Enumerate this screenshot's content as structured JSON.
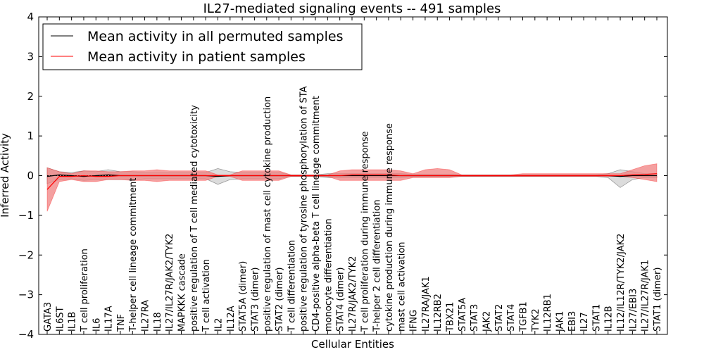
{
  "chart_data": {
    "type": "line",
    "title": "IL27-mediated signaling events -- 491 samples",
    "xlabel": "Cellular Entities",
    "ylabel": "Inferred Activity",
    "ylim": [
      -4,
      4
    ],
    "yticks": [
      "−4",
      "−3",
      "−2",
      "−1",
      "0",
      "1",
      "2",
      "3",
      "4"
    ],
    "legend": {
      "position": "top-left",
      "entries": [
        {
          "label": "Mean activity in all permuted samples",
          "color": "#000000"
        },
        {
          "label": "Mean activity in patient samples",
          "color": "#ff0000"
        }
      ]
    },
    "categories": [
      "GATA3",
      "IL6ST",
      "IL1B",
      "T cell proliferation",
      "IL6",
      "IL17A",
      "TNF",
      "T-helper cell lineage commitment",
      "IL27RA",
      "IL18",
      "IL27/IL27R/JAK2/TYK2",
      "MAPKKK cascade",
      "positive regulation of T cell mediated cytotoxicity",
      "T cell activation",
      "IL2",
      "IL12A",
      "STAT5A (dimer)",
      "STAT3 (dimer)",
      "positive regulation of mast cell cytokine production",
      "STAT2 (dimer)",
      "T cell differentiation",
      "positive regulation of tyrosine phosphorylation of STA",
      "CD4-positive alpha-beta T cell lineage commitment",
      "monocyte differentiation",
      "STAT4 (dimer)",
      "IL27R/JAK2/TYK2",
      "T cell proliferation during immune response",
      "T-helper 2 cell differentiation",
      "cytokine production during immune response",
      "mast cell activation",
      "IFNG",
      "IL27RA/JAK1",
      "IL12RB2",
      "TBX21",
      "STAT5A",
      "STAT3",
      "JAK2",
      "STAT2",
      "STAT4",
      "TGFB1",
      "TYK2",
      "IL12RB1",
      "JAK1",
      "EBI3",
      "IL27",
      "STAT1",
      "IL12B",
      "IL12/IL12R/TYK2/JAK2",
      "IL27/EBI3",
      "IL27/IL27R/JAK1",
      "STAT1 (dimer)"
    ],
    "series": [
      {
        "name": "Mean activity in all permuted samples",
        "color": "#000000",
        "values": [
          -0.02,
          0.02,
          0.0,
          -0.02,
          0.0,
          0.02,
          0.0,
          0.0,
          0.0,
          0.0,
          0.0,
          0.0,
          0.0,
          0.0,
          -0.02,
          0.0,
          0.0,
          0.0,
          0.0,
          0.0,
          0.0,
          0.0,
          0.0,
          0.0,
          0.0,
          0.0,
          0.0,
          0.0,
          0.0,
          0.0,
          0.0,
          0.0,
          0.0,
          0.0,
          0.0,
          0.0,
          0.0,
          0.0,
          0.0,
          0.0,
          0.0,
          0.0,
          0.0,
          0.0,
          0.0,
          0.0,
          0.0,
          -0.02,
          0.0,
          0.0,
          0.0
        ],
        "band_lower": [
          -0.2,
          -0.1,
          -0.08,
          -0.12,
          -0.1,
          -0.1,
          -0.1,
          -0.1,
          -0.08,
          -0.08,
          -0.08,
          -0.08,
          -0.08,
          -0.08,
          -0.22,
          -0.1,
          -0.08,
          -0.08,
          -0.08,
          -0.08,
          -0.02,
          -0.02,
          -0.02,
          -0.05,
          -0.05,
          -0.05,
          -0.05,
          -0.05,
          -0.05,
          -0.05,
          -0.03,
          -0.03,
          -0.03,
          -0.03,
          -0.02,
          -0.02,
          -0.02,
          -0.02,
          -0.02,
          -0.02,
          -0.02,
          -0.02,
          -0.02,
          -0.02,
          -0.02,
          -0.02,
          -0.05,
          -0.3,
          -0.1,
          -0.05,
          -0.05
        ],
        "band_upper": [
          0.2,
          0.1,
          0.08,
          0.12,
          0.1,
          0.15,
          0.1,
          0.1,
          0.08,
          0.08,
          0.08,
          0.08,
          0.08,
          0.08,
          0.18,
          0.1,
          0.08,
          0.08,
          0.08,
          0.08,
          0.02,
          0.02,
          0.02,
          0.05,
          0.05,
          0.05,
          0.05,
          0.05,
          0.05,
          0.05,
          0.03,
          0.03,
          0.03,
          0.03,
          0.02,
          0.02,
          0.02,
          0.02,
          0.02,
          0.02,
          0.02,
          0.02,
          0.02,
          0.02,
          0.02,
          0.02,
          0.05,
          0.15,
          0.1,
          0.05,
          0.05
        ]
      },
      {
        "name": "Mean activity in patient samples",
        "color": "#ff0000",
        "values": [
          -0.35,
          -0.02,
          -0.02,
          0.0,
          -0.02,
          -0.02,
          0.0,
          0.0,
          0.0,
          0.0,
          0.0,
          0.0,
          0.0,
          0.0,
          0.0,
          0.0,
          0.0,
          0.0,
          0.0,
          0.0,
          0.0,
          0.0,
          0.0,
          0.0,
          0.0,
          0.02,
          0.02,
          0.02,
          0.02,
          0.0,
          0.0,
          0.0,
          0.0,
          0.0,
          0.0,
          0.0,
          0.0,
          0.0,
          0.0,
          0.0,
          0.0,
          0.0,
          0.0,
          0.0,
          0.0,
          0.0,
          0.0,
          0.0,
          0.02,
          0.03,
          0.05
        ],
        "band_lower": [
          -0.9,
          -0.15,
          -0.1,
          -0.15,
          -0.15,
          -0.1,
          -0.1,
          -0.12,
          -0.12,
          -0.15,
          -0.12,
          -0.12,
          -0.12,
          -0.12,
          -0.02,
          -0.02,
          -0.12,
          -0.12,
          -0.12,
          -0.12,
          -0.02,
          -0.02,
          -0.02,
          -0.02,
          -0.12,
          -0.12,
          -0.12,
          -0.12,
          -0.12,
          -0.12,
          -0.05,
          -0.05,
          -0.05,
          -0.05,
          -0.02,
          -0.02,
          -0.02,
          -0.02,
          -0.02,
          -0.02,
          -0.02,
          -0.02,
          -0.02,
          -0.02,
          -0.02,
          -0.02,
          -0.02,
          -0.02,
          -0.05,
          -0.1,
          -0.15
        ],
        "band_upper": [
          0.2,
          0.1,
          0.05,
          0.12,
          0.12,
          0.1,
          0.1,
          0.12,
          0.12,
          0.15,
          0.12,
          0.12,
          0.12,
          0.12,
          0.02,
          0.02,
          0.12,
          0.12,
          0.12,
          0.12,
          0.02,
          0.02,
          0.02,
          0.02,
          0.12,
          0.15,
          0.15,
          0.15,
          0.15,
          0.12,
          0.05,
          0.15,
          0.18,
          0.15,
          0.02,
          0.02,
          0.02,
          0.02,
          0.02,
          0.05,
          0.05,
          0.05,
          0.05,
          0.05,
          0.05,
          0.05,
          0.05,
          0.05,
          0.15,
          0.25,
          0.3
        ]
      }
    ]
  }
}
